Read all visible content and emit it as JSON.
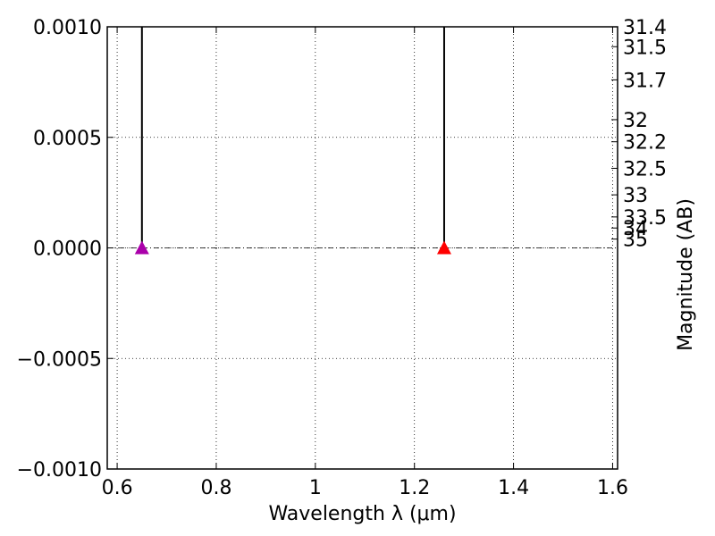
{
  "chart_data": {
    "type": "scatter",
    "xlabel": "Wavelength  λ (μm)",
    "ylabel": "",
    "y2label": "Magnitude (AB)",
    "xlim": [
      0.58,
      1.61
    ],
    "ylim": [
      -0.001,
      0.001
    ],
    "grid": true,
    "x_ticks": [
      {
        "value": 0.6,
        "label": "0.6"
      },
      {
        "value": 0.8,
        "label": "0.8"
      },
      {
        "value": 1.0,
        "label": "1"
      },
      {
        "value": 1.2,
        "label": "1.2"
      },
      {
        "value": 1.4,
        "label": "1.4"
      },
      {
        "value": 1.6,
        "label": "1.6"
      }
    ],
    "y_ticks": [
      {
        "value": 0.001,
        "label": "0.0010"
      },
      {
        "value": 0.0005,
        "label": "0.0005"
      },
      {
        "value": 0.0,
        "label": "0.0000"
      },
      {
        "value": -0.0005,
        "label": "−0.0005"
      },
      {
        "value": -0.001,
        "label": "−0.0010"
      }
    ],
    "y2_ticks": [
      {
        "mag": 31.4,
        "flux": 0.001,
        "label": "31.4"
      },
      {
        "mag": 31.5,
        "flux": 0.00091,
        "label": "31.5"
      },
      {
        "mag": 31.7,
        "flux": 0.00076,
        "label": "31.7"
      },
      {
        "mag": 32.0,
        "flux": 0.00058,
        "label": "32"
      },
      {
        "mag": 32.2,
        "flux": 0.00048,
        "label": "32.2"
      },
      {
        "mag": 32.5,
        "flux": 0.00036,
        "label": "32.5"
      },
      {
        "mag": 33.0,
        "flux": 0.00024,
        "label": "33"
      },
      {
        "mag": 33.5,
        "flux": 0.00014,
        "label": "33.5"
      },
      {
        "mag": 34.0,
        "flux": 9e-05,
        "label": "34"
      },
      {
        "mag": 35.0,
        "flux": 4e-05,
        "label": "35"
      }
    ],
    "points": [
      {
        "x": 0.65,
        "y": 0.0,
        "color": "#aa00aa",
        "marker": "triangle",
        "error_bar_top": 0.001
      },
      {
        "x": 1.26,
        "y": 0.0,
        "color": "#ff0000",
        "marker": "triangle",
        "error_bar_top": 0.001
      }
    ],
    "reference_line": {
      "y": 0.0,
      "style": "dash-dot"
    }
  }
}
